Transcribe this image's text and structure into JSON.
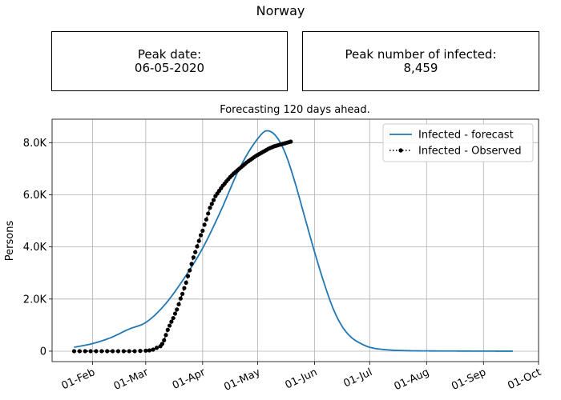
{
  "suptitle": "Norway",
  "cards": {
    "peak_date": {
      "label": "Peak date:",
      "value": "06-05-2020"
    },
    "peak_infected": {
      "label": "Peak number of infected:",
      "value": "8,459"
    }
  },
  "chart_data": {
    "type": "line",
    "title": "Forecasting 120 days ahead.",
    "xlabel": "",
    "ylabel": "Persons",
    "xlim": [
      "2020-01-10",
      "2020-10-01"
    ],
    "ylim": [
      -400,
      8900
    ],
    "x_ticks": [
      {
        "date": "2020-02-01",
        "label": "01-Feb"
      },
      {
        "date": "2020-03-01",
        "label": "01-Mar"
      },
      {
        "date": "2020-04-01",
        "label": "01-Apr"
      },
      {
        "date": "2020-05-01",
        "label": "01-May"
      },
      {
        "date": "2020-06-01",
        "label": "01-Jun"
      },
      {
        "date": "2020-07-01",
        "label": "01-Jul"
      },
      {
        "date": "2020-08-01",
        "label": "01-Aug"
      },
      {
        "date": "2020-09-01",
        "label": "01-Sep"
      },
      {
        "date": "2020-10-01",
        "label": "01-Oct"
      }
    ],
    "y_ticks": [
      {
        "value": 0,
        "label": "0"
      },
      {
        "value": 2000,
        "label": "2.0K"
      },
      {
        "value": 4000,
        "label": "4.0K"
      },
      {
        "value": 6000,
        "label": "6.0K"
      },
      {
        "value": 8000,
        "label": "8.0K"
      }
    ],
    "grid": true,
    "legend_position": "top-right",
    "series": [
      {
        "name": "Infected - forecast",
        "style": "line",
        "color": "#1f77b4",
        "points": [
          [
            "2020-01-22",
            150
          ],
          [
            "2020-02-01",
            290
          ],
          [
            "2020-02-11",
            520
          ],
          [
            "2020-02-21",
            850
          ],
          [
            "2020-03-01",
            1100
          ],
          [
            "2020-03-11",
            1750
          ],
          [
            "2020-03-21",
            2700
          ],
          [
            "2020-04-01",
            3950
          ],
          [
            "2020-04-11",
            5400
          ],
          [
            "2020-04-21",
            7000
          ],
          [
            "2020-05-01",
            8150
          ],
          [
            "2020-05-06",
            8459
          ],
          [
            "2020-05-11",
            8250
          ],
          [
            "2020-05-16",
            7600
          ],
          [
            "2020-05-21",
            6550
          ],
          [
            "2020-05-26",
            5300
          ],
          [
            "2020-06-01",
            3800
          ],
          [
            "2020-06-06",
            2650
          ],
          [
            "2020-06-11",
            1650
          ],
          [
            "2020-06-16",
            950
          ],
          [
            "2020-06-21",
            530
          ],
          [
            "2020-06-26",
            300
          ],
          [
            "2020-07-01",
            150
          ],
          [
            "2020-07-11",
            50
          ],
          [
            "2020-07-21",
            20
          ],
          [
            "2020-08-01",
            10
          ],
          [
            "2020-08-21",
            5
          ],
          [
            "2020-09-17",
            0
          ]
        ]
      },
      {
        "name": "Infected - Observed",
        "style": "dotted-markers",
        "color": "#000000",
        "points": [
          [
            "2020-01-22",
            0
          ],
          [
            "2020-01-25",
            0
          ],
          [
            "2020-01-28",
            0
          ],
          [
            "2020-01-31",
            0
          ],
          [
            "2020-02-03",
            0
          ],
          [
            "2020-02-06",
            0
          ],
          [
            "2020-02-09",
            0
          ],
          [
            "2020-02-12",
            0
          ],
          [
            "2020-02-15",
            0
          ],
          [
            "2020-02-18",
            0
          ],
          [
            "2020-02-21",
            0
          ],
          [
            "2020-02-24",
            0
          ],
          [
            "2020-02-27",
            10
          ],
          [
            "2020-03-01",
            20
          ],
          [
            "2020-03-03",
            30
          ],
          [
            "2020-03-05",
            60
          ],
          [
            "2020-03-07",
            130
          ],
          [
            "2020-03-09",
            190
          ],
          [
            "2020-03-10",
            280
          ],
          [
            "2020-03-11",
            420
          ],
          [
            "2020-03-12",
            620
          ],
          [
            "2020-03-13",
            820
          ],
          [
            "2020-03-14",
            980
          ],
          [
            "2020-03-15",
            1130
          ],
          [
            "2020-03-16",
            1270
          ],
          [
            "2020-03-17",
            1440
          ],
          [
            "2020-03-18",
            1600
          ],
          [
            "2020-03-19",
            1800
          ],
          [
            "2020-03-20",
            2020
          ],
          [
            "2020-03-21",
            2200
          ],
          [
            "2020-03-22",
            2420
          ],
          [
            "2020-03-23",
            2630
          ],
          [
            "2020-03-24",
            2880
          ],
          [
            "2020-03-25",
            3100
          ],
          [
            "2020-03-26",
            3350
          ],
          [
            "2020-03-27",
            3600
          ],
          [
            "2020-03-28",
            3800
          ],
          [
            "2020-03-29",
            4020
          ],
          [
            "2020-03-30",
            4230
          ],
          [
            "2020-03-31",
            4450
          ],
          [
            "2020-04-01",
            4620
          ],
          [
            "2020-04-02",
            4850
          ],
          [
            "2020-04-03",
            5050
          ],
          [
            "2020-04-04",
            5280
          ],
          [
            "2020-04-05",
            5500
          ],
          [
            "2020-04-06",
            5650
          ],
          [
            "2020-04-07",
            5800
          ],
          [
            "2020-04-08",
            5950
          ],
          [
            "2020-04-09",
            6050
          ],
          [
            "2020-04-10",
            6150
          ],
          [
            "2020-04-11",
            6250
          ],
          [
            "2020-04-12",
            6350
          ],
          [
            "2020-04-13",
            6430
          ],
          [
            "2020-04-14",
            6520
          ],
          [
            "2020-04-15",
            6600
          ],
          [
            "2020-04-16",
            6680
          ],
          [
            "2020-04-17",
            6750
          ],
          [
            "2020-04-18",
            6820
          ],
          [
            "2020-04-19",
            6880
          ],
          [
            "2020-04-20",
            6940
          ],
          [
            "2020-04-21",
            7000
          ],
          [
            "2020-04-22",
            7060
          ],
          [
            "2020-04-23",
            7120
          ],
          [
            "2020-04-24",
            7180
          ],
          [
            "2020-04-25",
            7240
          ],
          [
            "2020-04-26",
            7290
          ],
          [
            "2020-04-27",
            7340
          ],
          [
            "2020-04-28",
            7390
          ],
          [
            "2020-04-29",
            7440
          ],
          [
            "2020-04-30",
            7490
          ],
          [
            "2020-05-01",
            7530
          ],
          [
            "2020-05-02",
            7570
          ],
          [
            "2020-05-03",
            7610
          ],
          [
            "2020-05-04",
            7650
          ],
          [
            "2020-05-05",
            7690
          ],
          [
            "2020-05-06",
            7730
          ],
          [
            "2020-05-07",
            7770
          ],
          [
            "2020-05-08",
            7800
          ],
          [
            "2020-05-09",
            7830
          ],
          [
            "2020-05-10",
            7860
          ],
          [
            "2020-05-11",
            7880
          ],
          [
            "2020-05-12",
            7900
          ],
          [
            "2020-05-13",
            7920
          ],
          [
            "2020-05-14",
            7940
          ],
          [
            "2020-05-15",
            7960
          ],
          [
            "2020-05-16",
            7980
          ],
          [
            "2020-05-17",
            8000
          ],
          [
            "2020-05-18",
            8020
          ],
          [
            "2020-05-19",
            8040
          ]
        ]
      }
    ]
  }
}
